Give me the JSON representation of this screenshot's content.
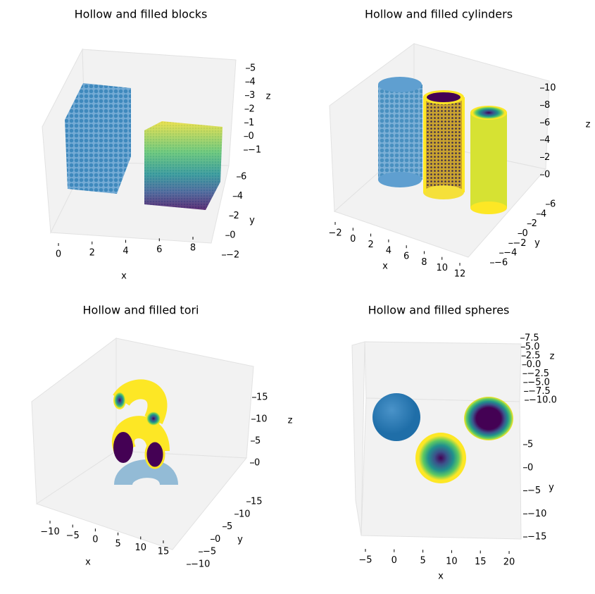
{
  "chart_data": [
    {
      "type": "scatter3d",
      "title": "Hollow and filled blocks",
      "xlabel": "x",
      "ylabel": "y",
      "zlabel": "z",
      "xlim": [
        -0.6,
        8.9
      ],
      "xticks": [
        0,
        2,
        4,
        6,
        8
      ],
      "ylim": [
        -2.5,
        6.8
      ],
      "yticks": [
        {
          "value": -2,
          "label": "−2"
        },
        0,
        2,
        4,
        6
      ],
      "zlim": [
        -1.6,
        5.4
      ],
      "zticks": [
        {
          "value": -1,
          "label": "−1"
        },
        0,
        1,
        2,
        3,
        4,
        5
      ]
    },
    {
      "type": "scatter3d",
      "title": "Hollow and filled cylinders",
      "xlabel": "x",
      "ylabel": "y",
      "zlabel": "z",
      "xlim": [
        -2.8,
        12.6
      ],
      "xticks": [
        {
          "value": -2,
          "label": "−2"
        },
        0,
        2,
        4,
        6,
        8,
        10,
        12
      ],
      "ylim": [
        -7,
        7
      ],
      "yticks": [
        {
          "value": -6,
          "label": "−6"
        },
        {
          "value": -4,
          "label": "−4"
        },
        {
          "value": -2,
          "label": "−2"
        },
        0,
        2,
        4,
        6
      ],
      "zlim": [
        -0.5,
        10.5
      ],
      "zticks": [
        0,
        2,
        4,
        6,
        8,
        10
      ]
    },
    {
      "type": "scatter3d",
      "title": "Hollow and filled tori",
      "xlabel": "x",
      "ylabel": "y",
      "zlabel": "z",
      "xlim": [
        -13,
        16
      ],
      "xticks": [
        {
          "value": -10,
          "label": "−10"
        },
        {
          "value": -5,
          "label": "−5"
        },
        0,
        5,
        10,
        15
      ],
      "ylim": [
        -12,
        17
      ],
      "yticks": [
        {
          "value": -10,
          "label": "−10"
        },
        {
          "value": -5,
          "label": "−5"
        },
        0,
        5,
        10,
        15
      ],
      "zlim": [
        -2,
        18
      ],
      "zticks": [
        0,
        5,
        10,
        15
      ]
    },
    {
      "type": "scatter3d",
      "title": "Hollow and filled spheres",
      "xlabel": "x",
      "ylabel": "y",
      "zlabel": "z",
      "xlim": [
        -6,
        21
      ],
      "xticks": [
        {
          "value": -5,
          "label": "−5"
        },
        0,
        5,
        10,
        15,
        20
      ],
      "ylim": [
        -16,
        7
      ],
      "yticks": [
        {
          "value": -15,
          "label": "−15"
        },
        {
          "value": -10,
          "label": "−10"
        },
        {
          "value": -5,
          "label": "−5"
        },
        0,
        5
      ],
      "zlim": [
        -10.5,
        8
      ],
      "zticks": [
        {
          "value": -10,
          "label": "−10.0"
        },
        {
          "value": -7.5,
          "label": "−7.5"
        },
        {
          "value": -5,
          "label": "−5.0"
        },
        {
          "value": -2.5,
          "label": "−2.5"
        },
        {
          "value": 0,
          "label": "0.0"
        },
        {
          "value": 2.5,
          "label": "2.5"
        },
        {
          "value": 5,
          "label": "5.0"
        },
        {
          "value": 7.5,
          "label": "7.5"
        }
      ]
    }
  ]
}
